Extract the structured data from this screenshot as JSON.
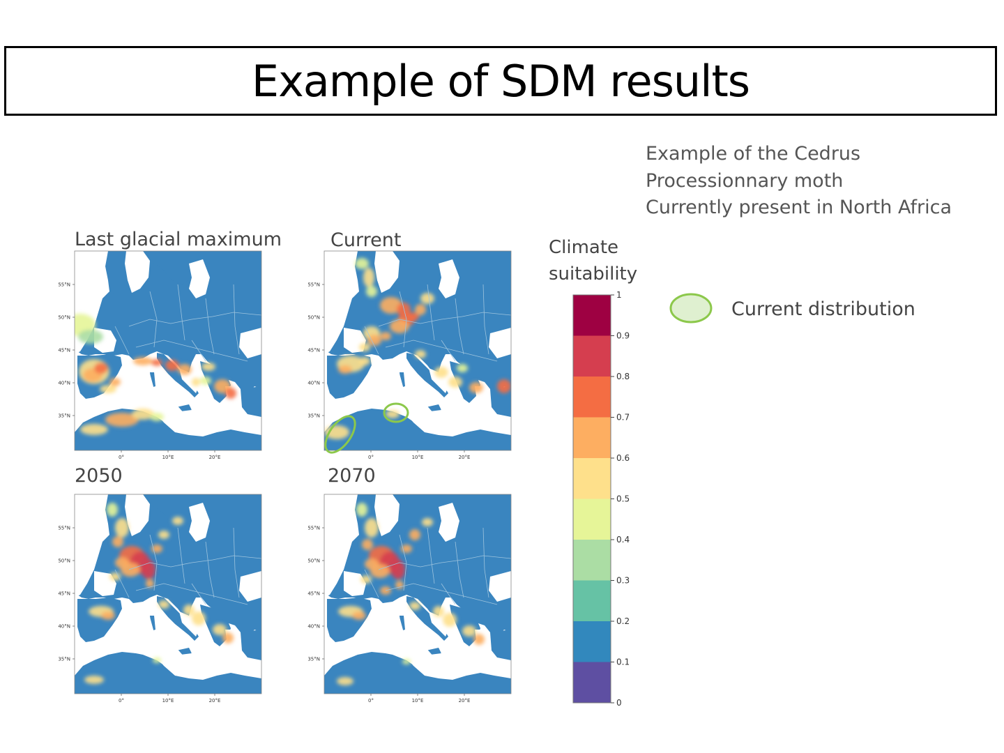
{
  "slide": {
    "title": "Example of SDM results",
    "info_lines": [
      "Example of the Cedrus",
      "Processionnary moth",
      "Currently present in North Africa"
    ]
  },
  "panels": [
    {
      "label": "Last glacial maximum",
      "scenario": "lgm"
    },
    {
      "label": "Current",
      "scenario": "current"
    },
    {
      "label": "2050",
      "scenario": "2050"
    },
    {
      "label": "2070",
      "scenario": "2070"
    }
  ],
  "map_axes": {
    "lat_ticks": [
      "55°N",
      "50°N",
      "45°N",
      "40°N",
      "35°N"
    ],
    "lon_ticks": [
      "0°",
      "10°E",
      "20°E"
    ]
  },
  "colorbar": {
    "title_line1": "Climate",
    "title_line2": "suitability",
    "ticks": [
      "0",
      "0.1",
      "0.2",
      "0.3",
      "0.4",
      "0.5",
      "0.6",
      "0.7",
      "0.8",
      "0.9",
      "1"
    ],
    "colors": [
      "#5e4fa2",
      "#3288bd",
      "#66c2a5",
      "#abdda4",
      "#e6f598",
      "#fee08b",
      "#fdae61",
      "#f46d43",
      "#d53e4f",
      "#9e0142"
    ]
  },
  "legend": {
    "label": "Current distribution",
    "marker_fill": "#dff0d0",
    "marker_stroke": "#8cc84b"
  },
  "colors": {
    "sea": "#ffffff",
    "land_low": "#3a85bf",
    "border": "#9ec4de"
  }
}
